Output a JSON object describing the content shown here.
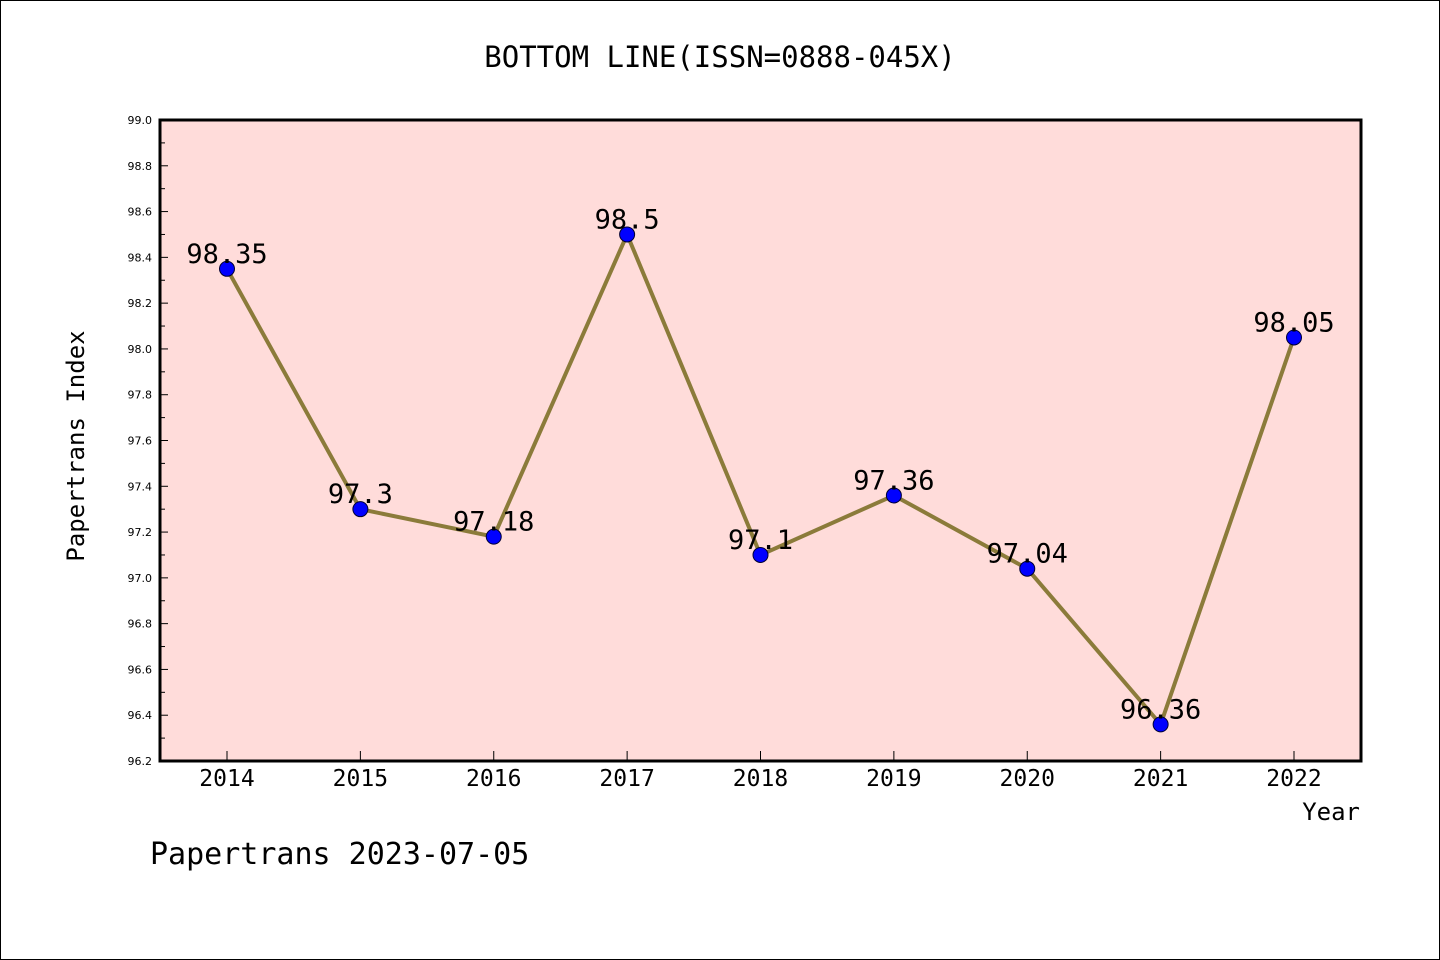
{
  "chart_data": {
    "type": "line",
    "title": "BOTTOM LINE(ISSN=0888-045X)",
    "xlabel": "Year",
    "ylabel": "Papertrans Index",
    "footer": "Papertrans 2023-07-05",
    "categories": [
      "2014",
      "2015",
      "2016",
      "2017",
      "2018",
      "2019",
      "2020",
      "2021",
      "2022"
    ],
    "series": [
      {
        "values": [
          98.35,
          97.3,
          97.18,
          98.5,
          97.1,
          97.36,
          97.04,
          96.36,
          98.05
        ],
        "labels": [
          "98.35",
          "97.3",
          "97.18",
          "98.5",
          "97.1",
          "97.36",
          "97.04",
          "96.36",
          "98.05"
        ]
      }
    ],
    "ylim": [
      96.2,
      99.0
    ],
    "yticks": [
      "96.2",
      "96.4",
      "96.6",
      "96.8",
      "97.0",
      "97.2",
      "97.4",
      "97.6",
      "97.8",
      "98.0",
      "98.2",
      "98.4",
      "98.6",
      "98.8",
      "99.0"
    ],
    "grid": false,
    "colors": {
      "plot_background": "#FFDCDA",
      "line": "#8B7B3A",
      "marker": "#0000FF"
    }
  }
}
